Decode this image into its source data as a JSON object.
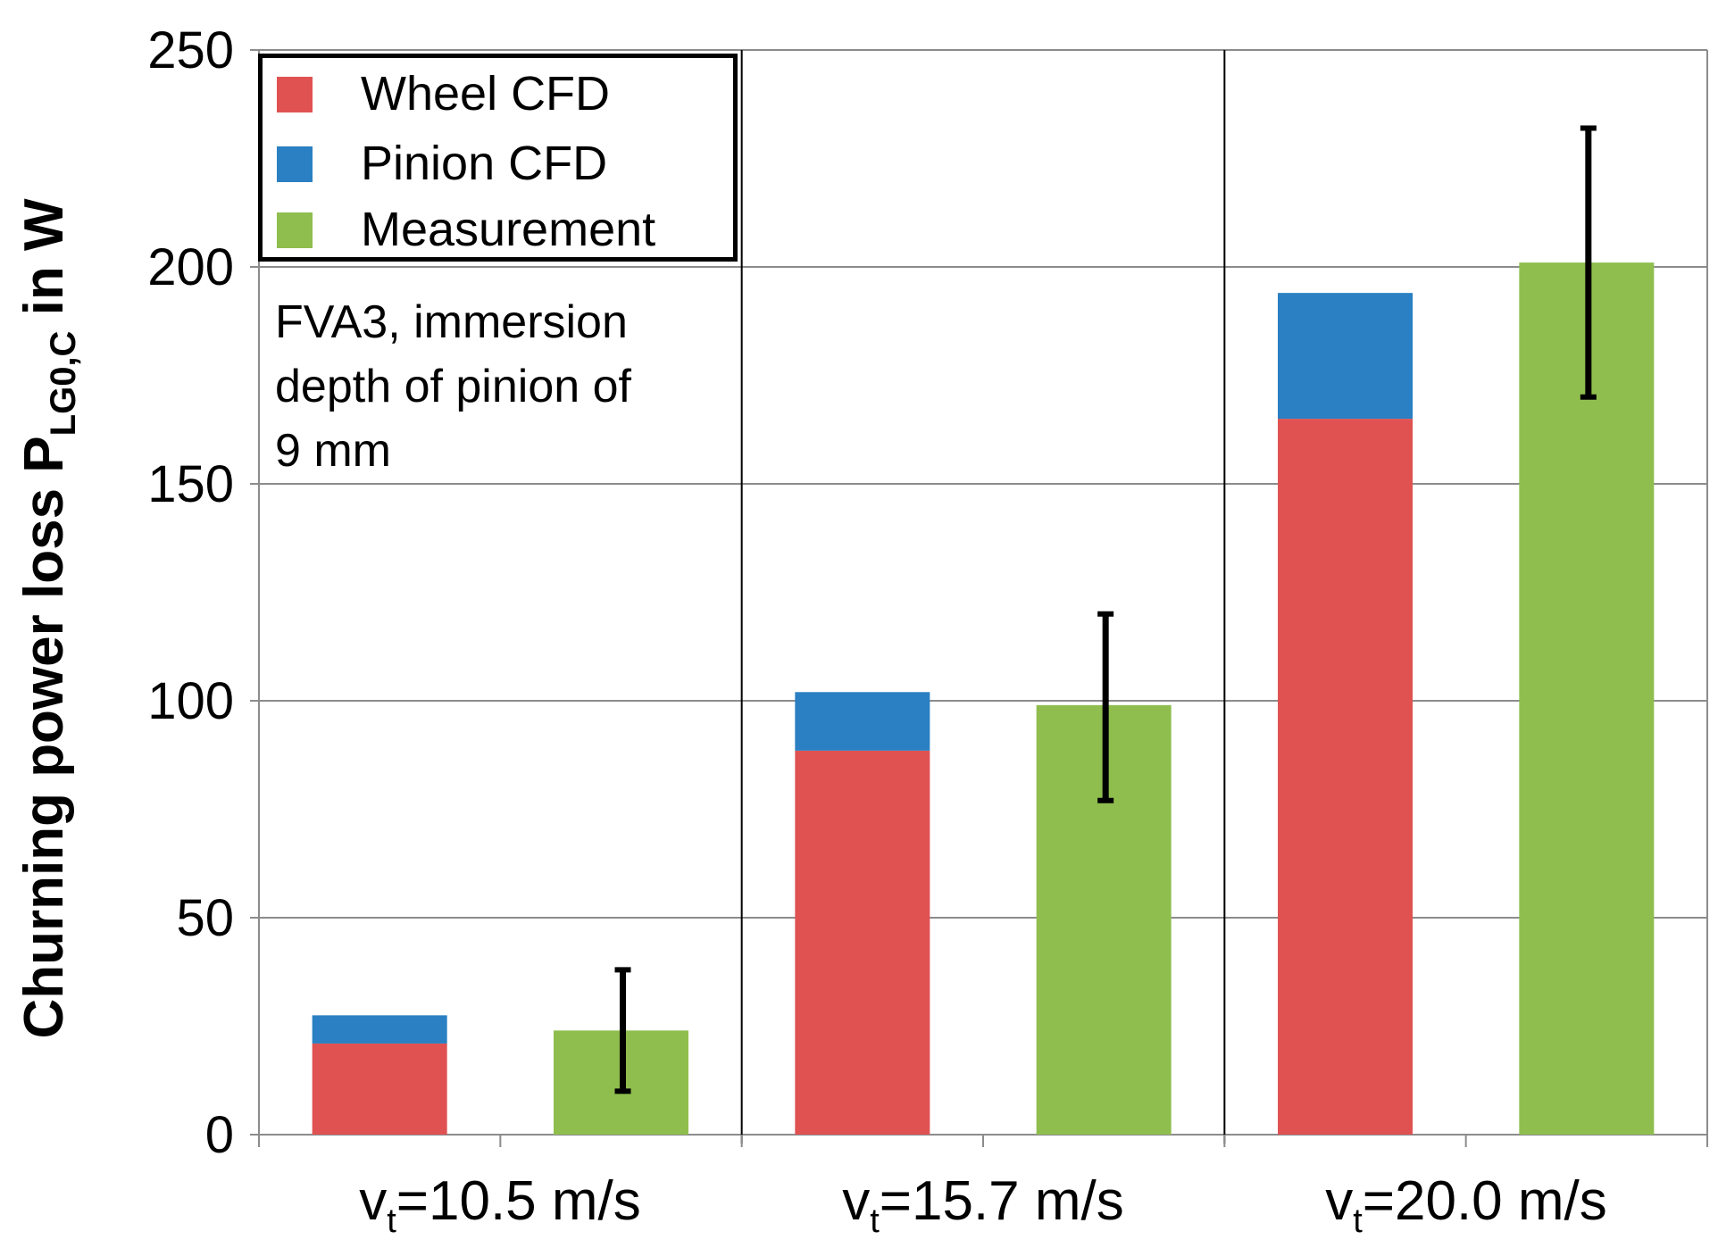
{
  "chart_data": {
    "type": "bar",
    "stacked": true,
    "categories": [
      {
        "var": "v",
        "sub": "t",
        "value": "=10.5 m/s"
      },
      {
        "var": "v",
        "sub": "t",
        "value": "=15.7 m/s"
      },
      {
        "var": "v",
        "sub": "t",
        "value": "=20.0 m/s"
      }
    ],
    "series": [
      {
        "name": "Wheel CFD",
        "color": "#e05252",
        "stack": "CFD",
        "values": [
          21,
          88.5,
          165
        ]
      },
      {
        "name": "Pinion CFD",
        "color": "#2a80c2",
        "stack": "CFD",
        "values": [
          6.5,
          13.5,
          29
        ]
      },
      {
        "name": "Measurement",
        "color": "#8fbe4e",
        "stack": "Measurement",
        "values": [
          24,
          99,
          201
        ],
        "error_bars": [
          [
            10,
            38
          ],
          [
            77,
            120
          ],
          [
            170,
            232
          ]
        ]
      }
    ],
    "ylabel": {
      "main": "Churning power loss P",
      "sub": "LG0,C",
      "suffix": " in W"
    },
    "yticks": [
      "0",
      "50",
      "100",
      "150",
      "200",
      "250"
    ],
    "ylim": [
      0,
      250
    ],
    "grid": true,
    "legend_position": "top-left",
    "annotation": "FVA3, immersion\ndepth of pinion of\n9 mm"
  }
}
